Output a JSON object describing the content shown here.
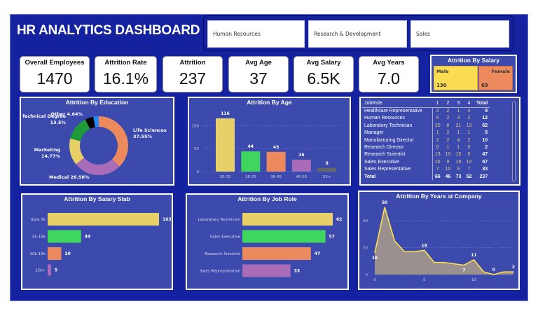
{
  "header": {
    "title": "HR ANALYTICS DASHBOARD",
    "filters": [
      "Human Resources",
      "Research & Development",
      "Sales"
    ]
  },
  "kpis": [
    {
      "label": "Overall Employees",
      "value": "1470"
    },
    {
      "label": "Attrition Rate",
      "value": "16.1%"
    },
    {
      "label": "Attrition",
      "value": "237"
    },
    {
      "label": "Avg Age",
      "value": "37"
    },
    {
      "label": "Avg Salary",
      "value": "6.5K"
    },
    {
      "label": "Avg Years",
      "value": "7.0"
    }
  ],
  "salary_gender": {
    "title": "Attrition By Salary",
    "male_label": "Male",
    "male_value": "130",
    "female_label": "Female",
    "female_value": "69",
    "male_color": "#fbdc52",
    "female_color": "#ec8a5e"
  },
  "education": {
    "title": "Attrition By Education",
    "slices": [
      {
        "label": "Life Sciences",
        "pct": 37.55,
        "text": "37.55%",
        "color": "#ec8a5e"
      },
      {
        "label": "Medical",
        "pct": 26.58,
        "text": "26.58%",
        "color": "#a86cb8"
      },
      {
        "label": "Marketing",
        "pct": 14.77,
        "text": "14.77%",
        "color": "#e8d068"
      },
      {
        "label": "Technical Degree",
        "pct": 13.5,
        "text": "13.5%",
        "color": "#1f9a3a"
      },
      {
        "label": "Other",
        "pct": 4.64,
        "text": "4.64%",
        "color": "#000000"
      },
      {
        "label": "",
        "pct": 2.96,
        "text": "",
        "color": "#1e8cff"
      }
    ]
  },
  "chart_data": [
    {
      "type": "bar",
      "title": "Attrition By Age",
      "categories": [
        "26-35",
        "18-25",
        "36-45",
        "46-55",
        "55+"
      ],
      "values": [
        116,
        44,
        43,
        26,
        8
      ],
      "colors": [
        "#e8d068",
        "#3fd65f",
        "#ec8a5e",
        "#a86cb8",
        "#666666"
      ],
      "yticks": [
        0,
        50,
        100
      ],
      "ylim": [
        0,
        125
      ],
      "grid": true
    },
    {
      "type": "bar",
      "orientation": "horizontal",
      "title": "Attrition By Salary Slab",
      "categories": [
        "Upto 5k",
        "5k-10k",
        "10k-15k",
        "15k+"
      ],
      "values": [
        163,
        49,
        20,
        5
      ],
      "colors": [
        "#e8d068",
        "#3fd65f",
        "#ec8a5e",
        "#a86cb8"
      ]
    },
    {
      "type": "bar",
      "orientation": "horizontal",
      "title": "Attrition By Job Role",
      "categories": [
        "Laboratory Technician",
        "Sales Executive",
        "Research Scientist",
        "Sales Representative"
      ],
      "values": [
        62,
        57,
        47,
        33
      ],
      "colors": [
        "#e8d068",
        "#3fd65f",
        "#ec8a5e",
        "#a86cb8"
      ]
    },
    {
      "type": "area",
      "title": "Attrition By Years at Company",
      "x": [
        0,
        1,
        2,
        3,
        4,
        5,
        6,
        7,
        8,
        9,
        10,
        11,
        12,
        13,
        14
      ],
      "values": [
        16,
        50,
        25,
        17,
        17,
        18,
        9,
        9,
        8,
        7,
        11,
        2,
        0,
        2,
        2
      ],
      "labeled": {
        "0": "16",
        "1": "50",
        "5": "18",
        "9": "7",
        "10": "11",
        "12": "0",
        "14": "2"
      },
      "xticks": [
        0,
        5,
        10
      ],
      "yticks": [
        0,
        20,
        40
      ],
      "ylim": [
        0,
        52
      ],
      "line_color": "#ffe14a",
      "fill_color": "#9a9090",
      "grid": true
    }
  ],
  "jobrole_table": {
    "headers": [
      "JobRole",
      "1",
      "2",
      "3",
      "4",
      "Total"
    ],
    "rows": [
      [
        "Healthcare Representative",
        "2",
        "2",
        "1",
        "4",
        "9"
      ],
      [
        "Human Resources",
        "5",
        "2",
        "3",
        "2",
        "12"
      ],
      [
        "Laboratory Technician",
        "20",
        "8",
        "21",
        "13",
        "62"
      ],
      [
        "Manager",
        "1",
        "2",
        "1",
        "1",
        "5"
      ],
      [
        "Manufacturing Director",
        "2",
        "2",
        "4",
        "2",
        "10"
      ],
      [
        "Research Director",
        "0",
        "1",
        "1",
        "0",
        "2"
      ],
      [
        "Research Scientist",
        "13",
        "10",
        "15",
        "9",
        "47"
      ],
      [
        "Sales Executive",
        "16",
        "9",
        "18",
        "14",
        "57"
      ],
      [
        "Sales Representative",
        "7",
        "10",
        "9",
        "7",
        "33"
      ]
    ],
    "total": [
      "Total",
      "66",
      "46",
      "73",
      "52",
      "237"
    ]
  }
}
